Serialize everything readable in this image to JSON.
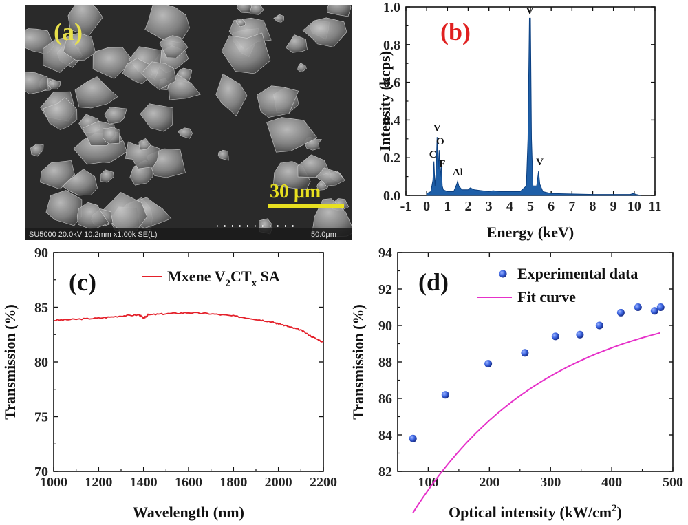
{
  "colors": {
    "label_a": "#e8e04a",
    "label_b": "#e02020",
    "scale_bar": "#e8e020",
    "eds_fill": "#1e5fa8",
    "transmission_line": "#e4202a",
    "points": "#2f57d8",
    "fit": "#e631c9"
  },
  "panel_a": {
    "label": "(a)",
    "scale_label": "30 μm",
    "info_bar": "SU5000 20.0kV 10.2mm x1.00k SE(L)",
    "info_scale": "50.0μm",
    "image_description": "SEM micrograph"
  },
  "chart_data": [
    {
      "panel": "b",
      "type": "area",
      "label": "(b)",
      "xlabel": "Energy (keV)",
      "ylabel": "Intensity (kcps)",
      "xlim": [
        -1,
        11
      ],
      "ylim": [
        0,
        1.0
      ],
      "xticks": [
        "-1",
        "0",
        "1",
        "2",
        "3",
        "4",
        "5",
        "6",
        "7",
        "8",
        "9",
        "10",
        "11"
      ],
      "yticks": [
        "0.0",
        "0.2",
        "0.4",
        "0.6",
        "0.8",
        "1.0"
      ],
      "x": [
        0,
        0.2,
        0.3,
        0.35,
        0.4,
        0.45,
        0.5,
        0.55,
        0.6,
        0.65,
        0.7,
        0.75,
        0.8,
        1.0,
        1.3,
        1.45,
        1.49,
        1.55,
        1.7,
        2.0,
        2.1,
        2.3,
        3.0,
        3.2,
        3.5,
        4.5,
        4.8,
        4.88,
        4.95,
        5.0,
        5.05,
        5.12,
        5.3,
        5.39,
        5.45,
        5.6,
        6.0,
        8.0,
        9.8,
        9.95,
        10.1,
        10.3
      ],
      "y": [
        0.01,
        0.02,
        0.08,
        0.18,
        0.05,
        0.12,
        0.31,
        0.14,
        0.24,
        0.1,
        0.16,
        0.05,
        0.03,
        0.02,
        0.02,
        0.06,
        0.075,
        0.05,
        0.03,
        0.03,
        0.04,
        0.03,
        0.02,
        0.025,
        0.02,
        0.02,
        0.05,
        0.3,
        0.94,
        0.94,
        0.3,
        0.05,
        0.05,
        0.13,
        0.06,
        0.02,
        0.01,
        0.005,
        0.005,
        0.01,
        0.005,
        0.0
      ],
      "annotations": [
        {
          "text": "V",
          "x": 0.5,
          "y": 0.33
        },
        {
          "text": "O",
          "x": 0.65,
          "y": 0.26
        },
        {
          "text": "C",
          "x": 0.3,
          "y": 0.19
        },
        {
          "text": "F",
          "x": 0.75,
          "y": 0.14
        },
        {
          "text": "Al",
          "x": 1.5,
          "y": 0.095
        },
        {
          "text": "V",
          "x": 4.97,
          "y": 0.95
        },
        {
          "text": "V",
          "x": 5.45,
          "y": 0.15
        }
      ]
    },
    {
      "panel": "c",
      "type": "line",
      "label": "(c)",
      "xlabel": "Wavelength (nm)",
      "ylabel": "Transmission (%)",
      "xlim": [
        1000,
        2200
      ],
      "ylim": [
        70,
        90
      ],
      "xticks": [
        "1000",
        "1200",
        "1400",
        "1600",
        "1800",
        "2000",
        "2200"
      ],
      "yticks": [
        "70",
        "75",
        "80",
        "85",
        "90"
      ],
      "series": [
        {
          "name_parts": [
            "Mxene V",
            "2",
            "CT",
            "x",
            " SA"
          ],
          "x": [
            1000,
            1100,
            1200,
            1300,
            1380,
            1400,
            1420,
            1500,
            1600,
            1700,
            1800,
            1900,
            1960,
            2000,
            2050,
            2100,
            2150,
            2200
          ],
          "y": [
            83.8,
            83.9,
            84.0,
            84.2,
            84.3,
            84.0,
            84.3,
            84.4,
            84.5,
            84.4,
            84.2,
            83.9,
            83.7,
            83.5,
            83.2,
            82.9,
            82.3,
            81.8
          ]
        }
      ]
    },
    {
      "panel": "d",
      "type": "scatter",
      "label": "(d)",
      "xlabel_parts": [
        "Optical intensity (kW/cm",
        "2",
        ")"
      ],
      "ylabel": "Transmission (%)",
      "xlim": [
        50,
        500
      ],
      "ylim": [
        82,
        94
      ],
      "xticks": [
        "100",
        "200",
        "300",
        "400",
        "500"
      ],
      "yticks": [
        "82",
        "84",
        "86",
        "88",
        "90",
        "92",
        "94"
      ],
      "series": [
        {
          "name": "Experimental data",
          "x": [
            75,
            128,
            198,
            258,
            308,
            348,
            380,
            415,
            443,
            470,
            480
          ],
          "y": [
            83.8,
            86.2,
            87.9,
            88.5,
            89.4,
            89.5,
            90.0,
            90.7,
            91.0,
            90.8,
            91.0
          ]
        },
        {
          "name": "Fit curve",
          "fit": {
            "a": 91.5,
            "b": -16.5,
            "c": 0.0045
          }
        }
      ]
    }
  ]
}
